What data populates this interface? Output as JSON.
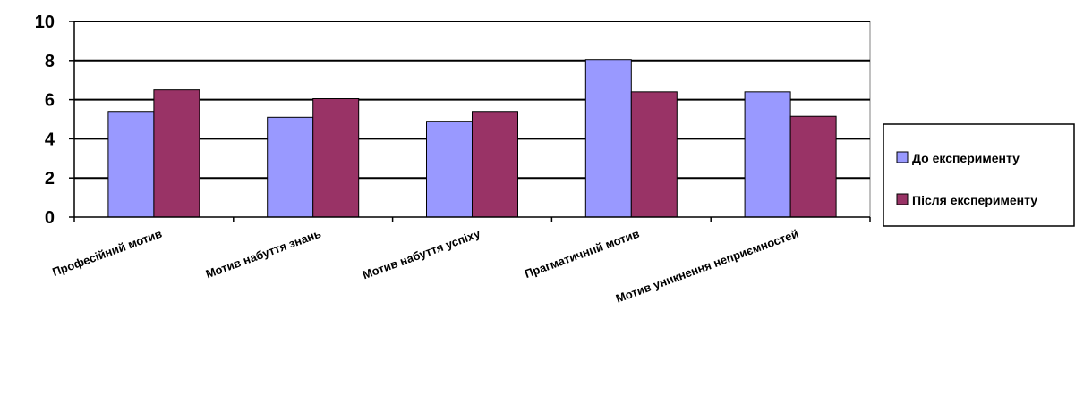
{
  "chart_data": {
    "type": "bar",
    "categories": [
      "Професійний мотив",
      "Мотив набуття знань",
      "Мотив набуття успіху",
      "Прагматичний мотив",
      "Мотив уникнення неприємностей"
    ],
    "series": [
      {
        "name": "До експерименту",
        "color": "#9999ff",
        "values": [
          5.4,
          5.1,
          4.9,
          8.05,
          6.4
        ]
      },
      {
        "name": "Після експерименту",
        "color": "#993366",
        "values": [
          6.5,
          6.05,
          5.4,
          6.4,
          5.15
        ]
      }
    ],
    "title": "",
    "xlabel": "",
    "ylabel": "",
    "ylim": [
      0,
      10
    ],
    "yticks": [
      "0",
      "2",
      "4",
      "6",
      "8",
      "10"
    ],
    "grid": true,
    "legend_position": "right"
  }
}
